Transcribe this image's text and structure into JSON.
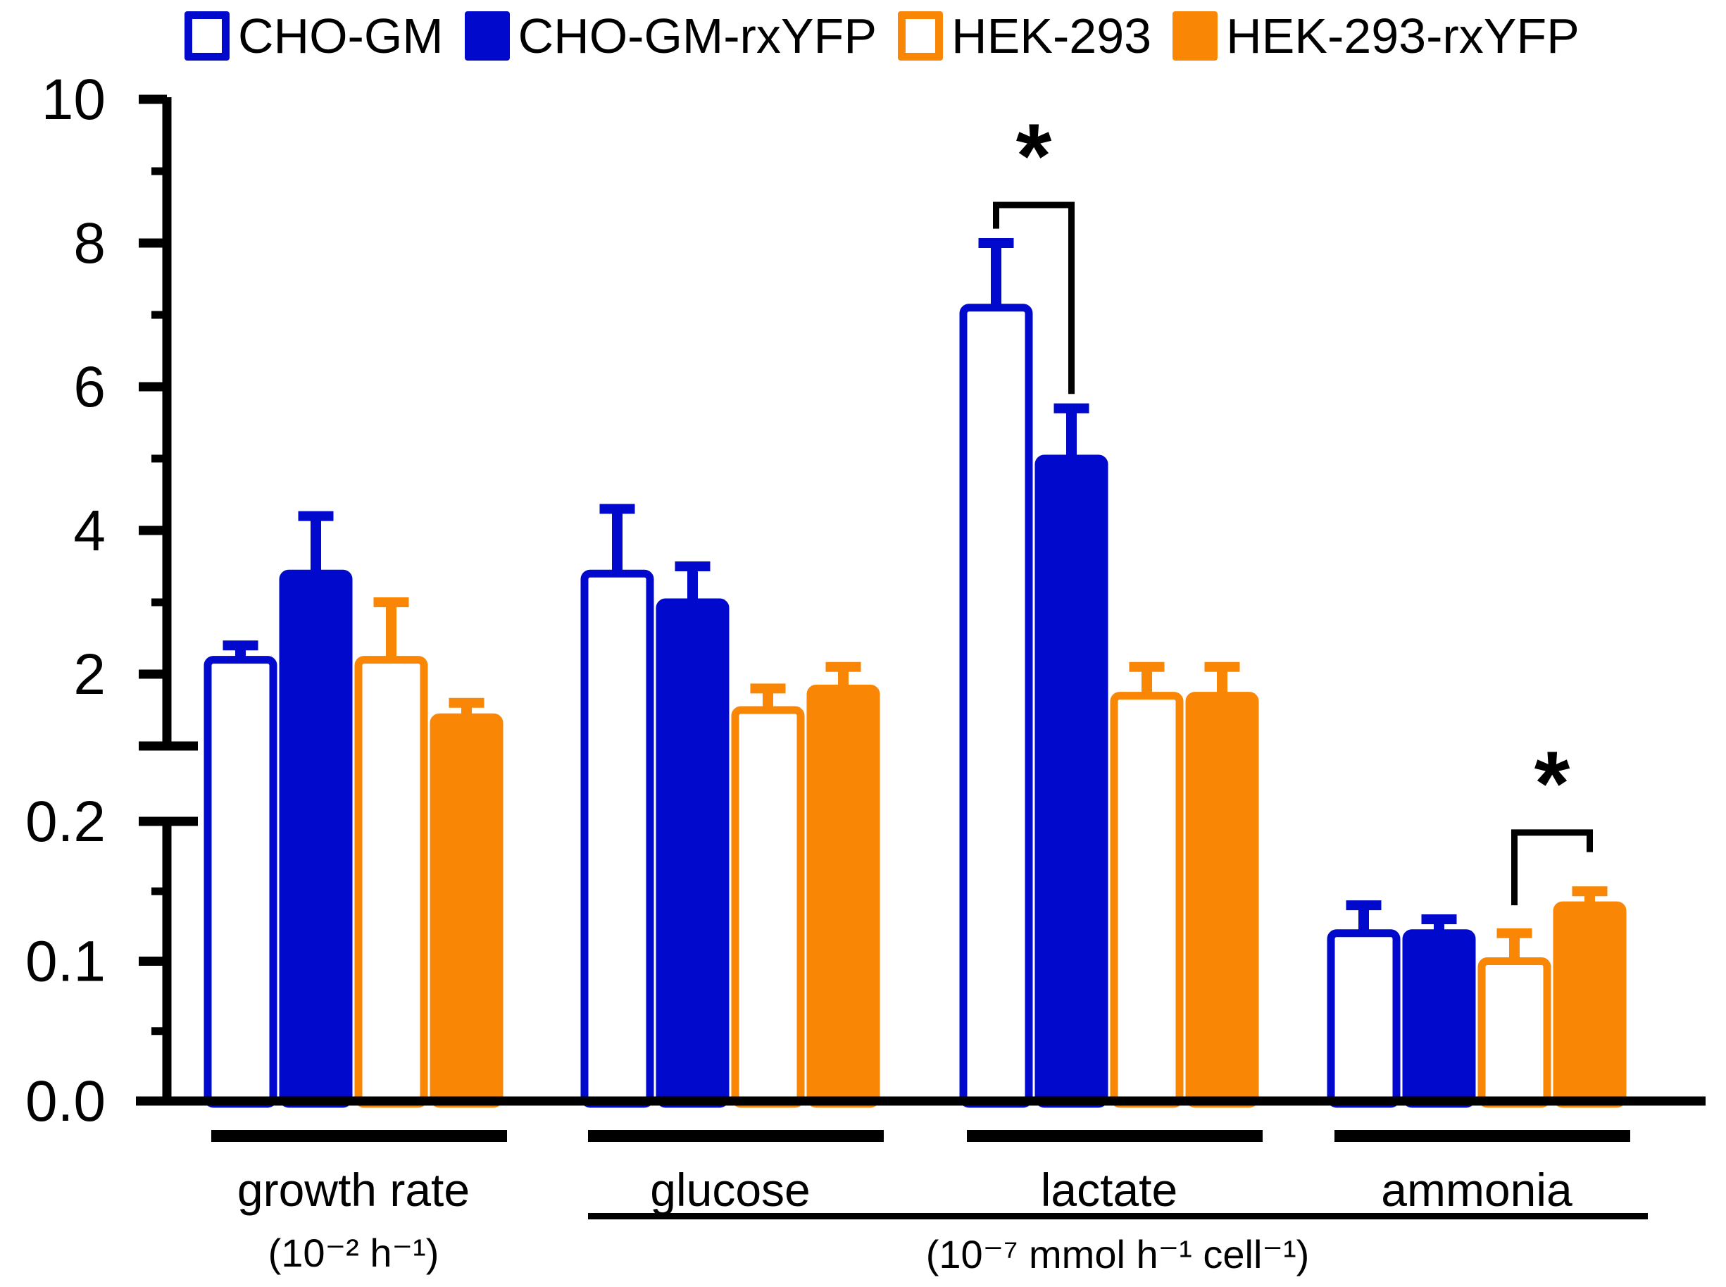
{
  "chart_data": {
    "type": "bar",
    "title": "",
    "legend_position": "top",
    "grid": false,
    "colors": {
      "cho_blue": "#0009CC",
      "hek_orange": "#FA8605",
      "axis_black": "#000000",
      "background": "#FFFFFF"
    },
    "categories": [
      {
        "label": "growth rate",
        "unit": "(10⁻² h⁻¹)"
      },
      {
        "label": "glucose",
        "unit": ""
      },
      {
        "label": "lactate",
        "unit": ""
      },
      {
        "label": "ammonia",
        "unit": ""
      }
    ],
    "shared_unit_label": "(10⁻⁷ mmol h⁻¹ cell⁻¹)",
    "shared_unit_span_categories": [
      "glucose",
      "lactate",
      "ammonia"
    ],
    "series": [
      {
        "name": "CHO-GM",
        "style": "outline",
        "color": "#0009CC",
        "values": [
          2.2,
          3.4,
          7.1,
          0.12
        ],
        "errors": [
          0.2,
          0.9,
          0.9,
          0.02
        ]
      },
      {
        "name": "CHO-GM-rxYFP",
        "style": "solid",
        "color": "#0009CC",
        "values": [
          3.4,
          3.0,
          5.0,
          0.12
        ],
        "errors": [
          0.8,
          0.5,
          0.7,
          0.01
        ]
      },
      {
        "name": "HEK-293",
        "style": "outline",
        "color": "#FA8605",
        "values": [
          2.2,
          1.5,
          1.7,
          0.1
        ],
        "errors": [
          0.8,
          0.3,
          0.4,
          0.02
        ]
      },
      {
        "name": "HEK-293-rxYFP",
        "style": "solid",
        "color": "#FA8605",
        "values": [
          1.4,
          1.8,
          1.7,
          0.14
        ],
        "errors": [
          0.2,
          0.3,
          0.4,
          0.01
        ]
      }
    ],
    "y_axis": {
      "broken": true,
      "upper": {
        "range": [
          1,
          10
        ],
        "major_ticks": [
          {
            "v": 2,
            "label": "2"
          },
          {
            "v": 4,
            "label": "4"
          },
          {
            "v": 6,
            "label": "6"
          },
          {
            "v": 8,
            "label": "8"
          },
          {
            "v": 10,
            "label": "10"
          }
        ],
        "minor_ticks": [
          3,
          5,
          7,
          9
        ],
        "break_cap_value": 1
      },
      "lower": {
        "range": [
          0,
          0.2
        ],
        "major_ticks": [
          {
            "v": 0,
            "label": "0.0"
          },
          {
            "v": 0.1,
            "label": "0.1"
          },
          {
            "v": 0.2,
            "label": "0.2"
          }
        ],
        "minor_ticks": [
          0.05,
          0.15
        ]
      }
    },
    "significance": [
      {
        "symbol": "*",
        "category_index": 2,
        "series_pair": [
          0,
          1
        ],
        "bracket_top_value": 8.53,
        "leg_bottom_values": [
          8.2,
          5.9
        ]
      },
      {
        "symbol": "*",
        "category_index": 3,
        "series_pair": [
          2,
          3
        ],
        "bracket_top_value": 0.192,
        "leg_bottom_values": [
          0.14,
          0.178
        ]
      }
    ]
  }
}
